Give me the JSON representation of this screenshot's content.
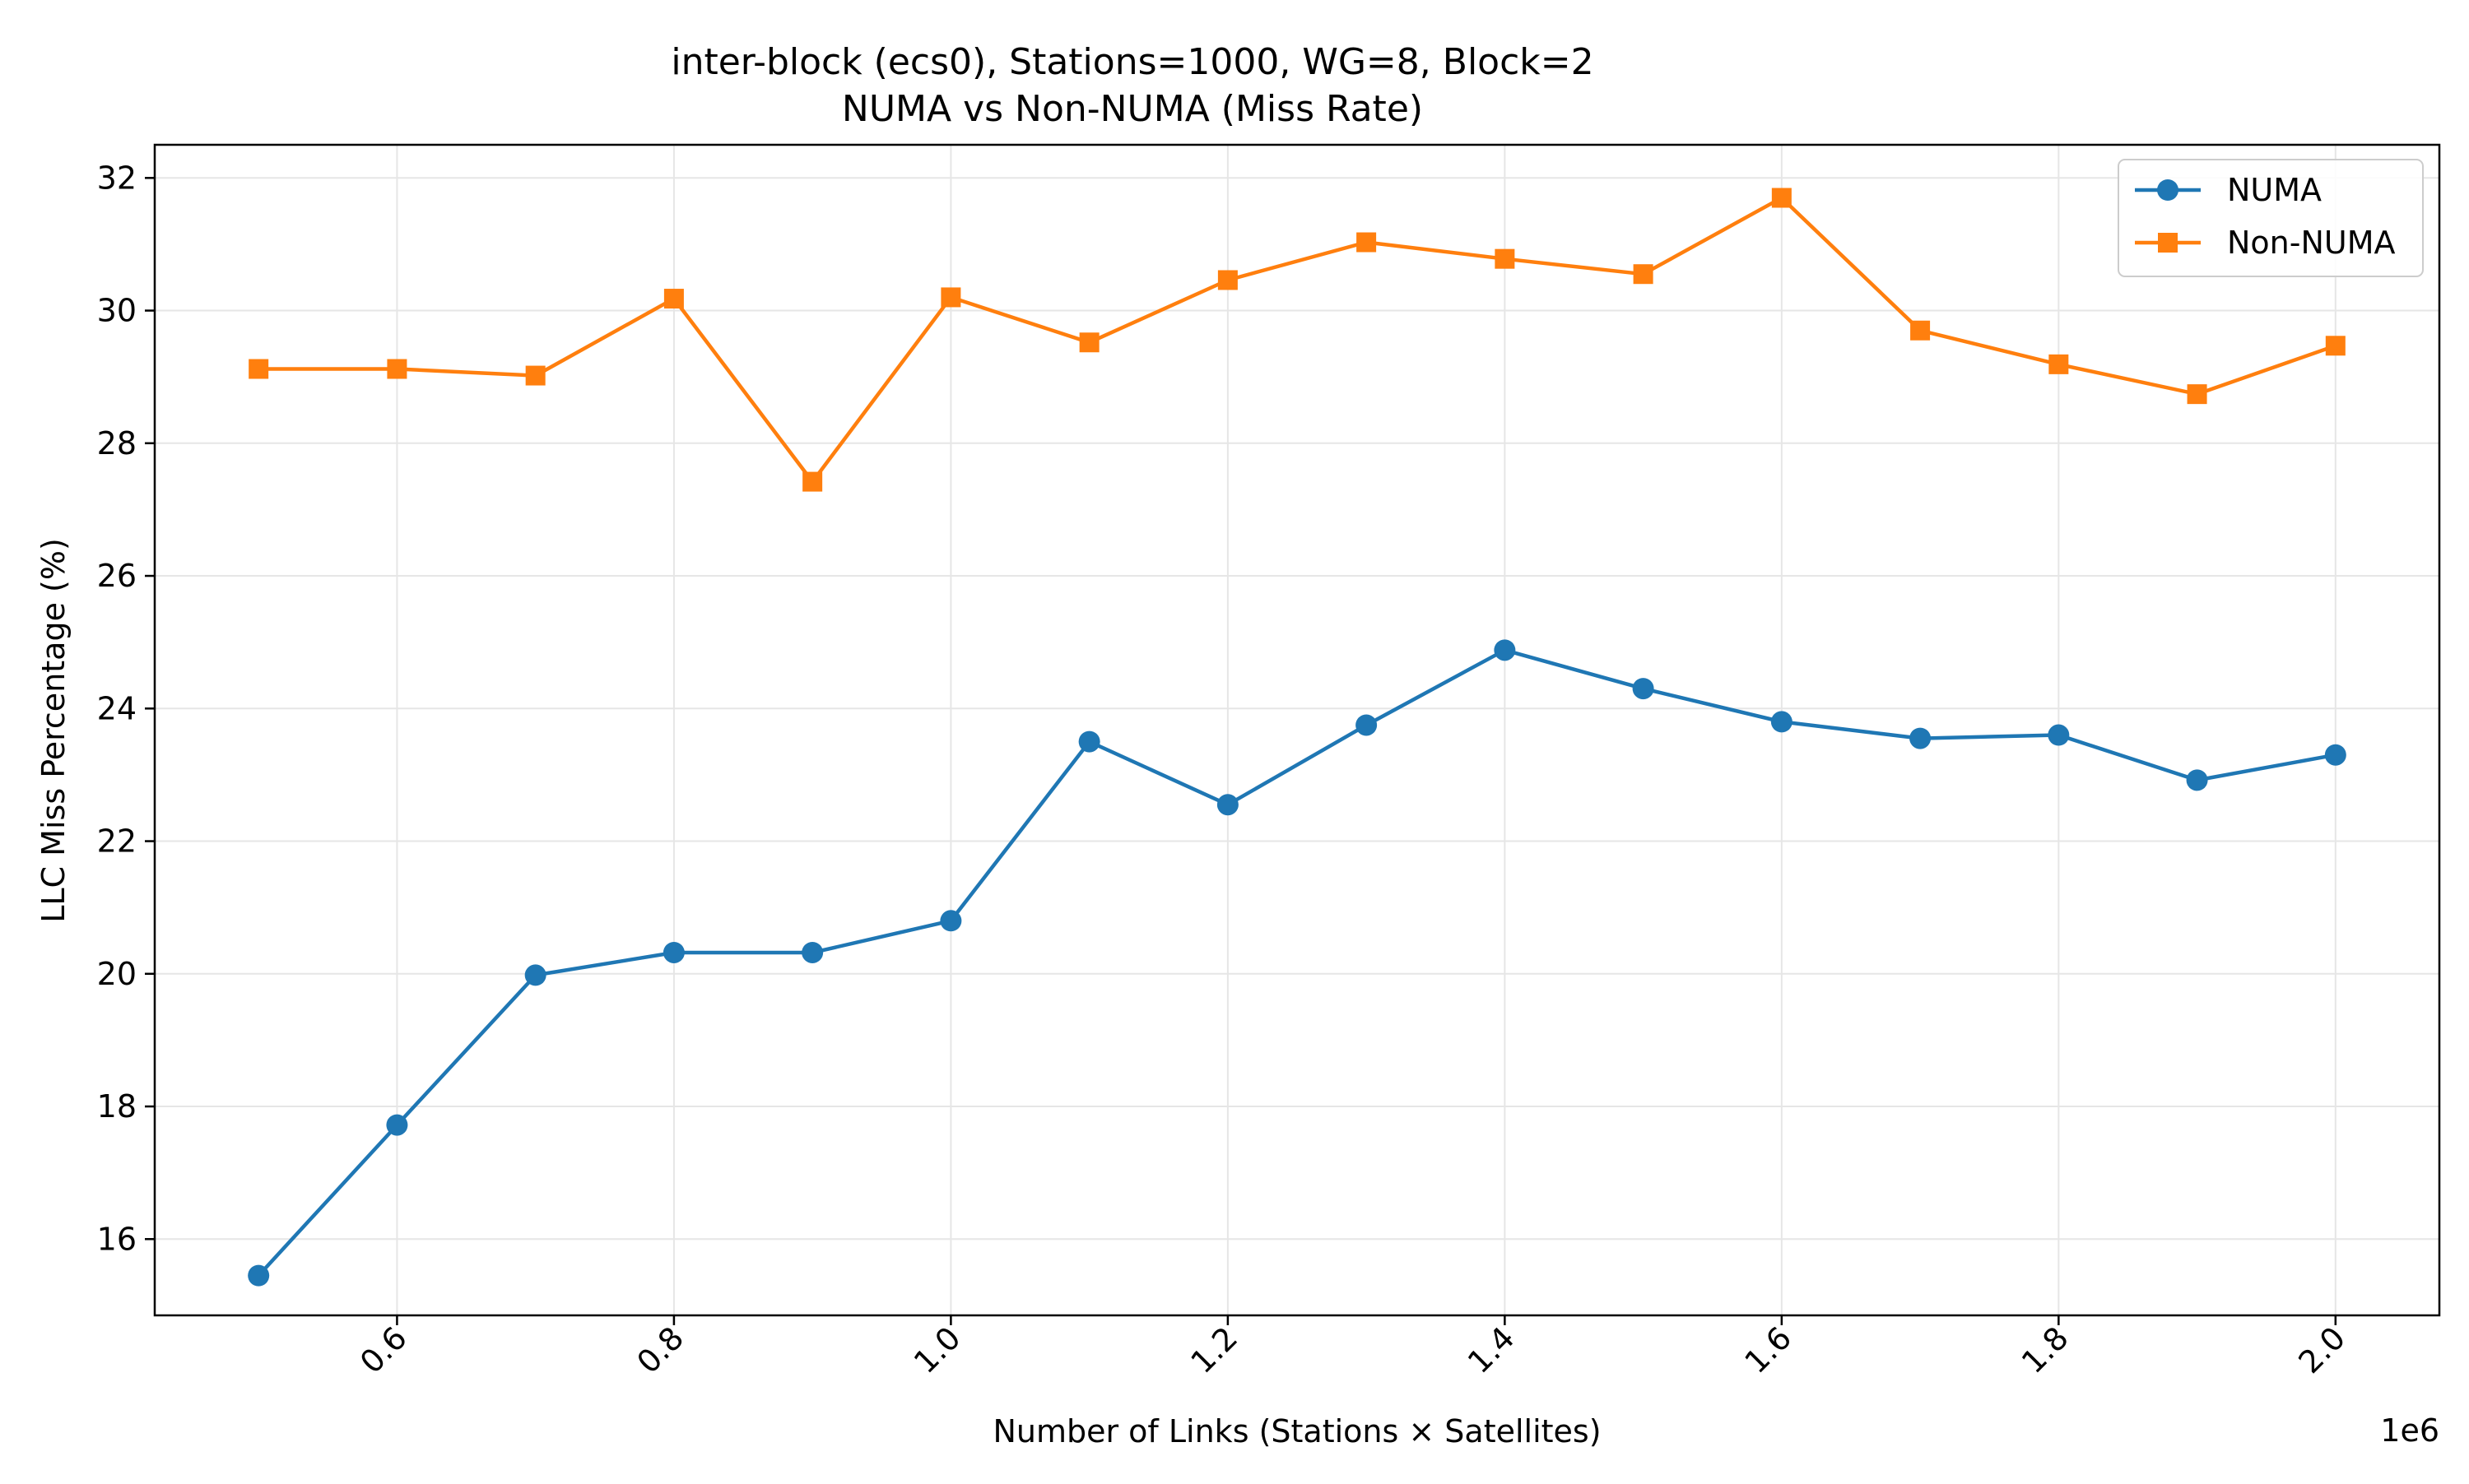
{
  "chart_data": {
    "type": "line",
    "title": "inter-block (ecs0), Stations=1000, WG=8, Block=2",
    "subtitle": "NUMA vs Non-NUMA (Miss Rate)",
    "xlabel": "Number of Links (Stations × Satellites)",
    "ylabel": "LLC Miss Percentage (%)",
    "x_offset_label": "1e6",
    "xlim": [
      0.425,
      2.075
    ],
    "ylim": [
      14.85,
      32.5
    ],
    "x_ticks": [
      0.6,
      0.8,
      1.0,
      1.2,
      1.4,
      1.6,
      1.8,
      2.0
    ],
    "x_tick_labels": [
      "0.6",
      "0.8",
      "1.0",
      "1.2",
      "1.4",
      "1.6",
      "1.8",
      "2.0"
    ],
    "y_ticks": [
      16,
      18,
      20,
      22,
      24,
      26,
      28,
      30,
      32
    ],
    "y_tick_labels": [
      "16",
      "18",
      "20",
      "22",
      "24",
      "26",
      "28",
      "30",
      "32"
    ],
    "grid": true,
    "legend_position": "top-right",
    "x": [
      0.5,
      0.6,
      0.7,
      0.8,
      0.9,
      1.0,
      1.1,
      1.2,
      1.3,
      1.4,
      1.5,
      1.6,
      1.7,
      1.8,
      1.9,
      2.0
    ],
    "series": [
      {
        "name": "NUMA",
        "color": "#1f77b4",
        "marker": "circle",
        "values": [
          15.45,
          17.72,
          19.98,
          20.32,
          20.32,
          20.8,
          23.5,
          22.55,
          23.75,
          24.88,
          24.3,
          23.8,
          23.55,
          23.6,
          22.92,
          23.3
        ]
      },
      {
        "name": "Non-NUMA",
        "color": "#ff7f0e",
        "marker": "square",
        "values": [
          29.12,
          29.12,
          29.02,
          30.18,
          27.42,
          30.2,
          29.52,
          30.46,
          31.03,
          30.78,
          30.55,
          31.7,
          29.7,
          29.19,
          28.74,
          29.47
        ]
      }
    ]
  }
}
